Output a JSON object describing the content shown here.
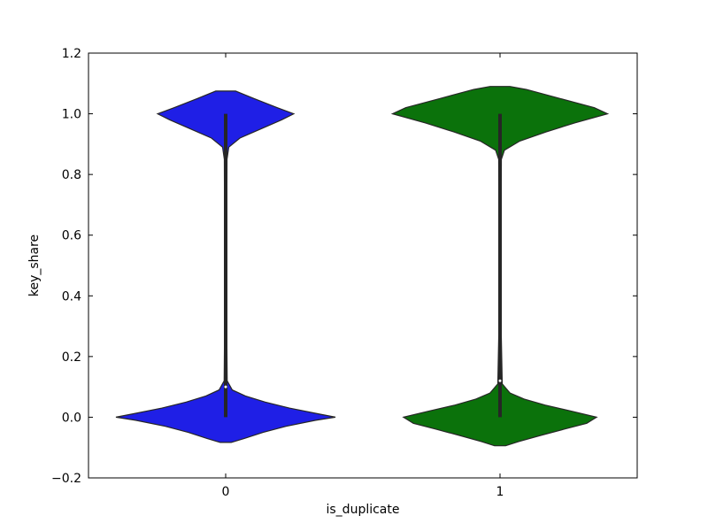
{
  "chart_data": {
    "type": "violin",
    "title": "",
    "xlabel": "is_duplicate",
    "ylabel": "key_share",
    "ylim": [
      -0.2,
      1.2
    ],
    "yticks": [
      -0.2,
      0.0,
      0.2,
      0.4,
      0.6,
      0.8,
      1.0,
      1.2
    ],
    "ytick_labels": [
      "−0.2",
      "0.0",
      "0.2",
      "0.4",
      "0.6",
      "0.8",
      "1.0",
      "1.2"
    ],
    "categories": [
      "0",
      "1"
    ],
    "grid": false,
    "series": [
      {
        "category": "0",
        "color": "#1f1fe6",
        "min": 0.0,
        "max": 1.0,
        "median": 0.1,
        "density": [
          [
            -0.083,
            0.05
          ],
          [
            -0.07,
            0.17
          ],
          [
            -0.05,
            0.34
          ],
          [
            -0.03,
            0.55
          ],
          [
            -0.01,
            0.82
          ],
          [
            0.0,
            1.0
          ],
          [
            0.01,
            0.86
          ],
          [
            0.03,
            0.58
          ],
          [
            0.05,
            0.36
          ],
          [
            0.07,
            0.18
          ],
          [
            0.09,
            0.06
          ],
          [
            0.12,
            0.014
          ],
          [
            0.3,
            0.01
          ],
          [
            0.6,
            0.01
          ],
          [
            0.85,
            0.012
          ],
          [
            0.89,
            0.028
          ],
          [
            0.92,
            0.13
          ],
          [
            0.95,
            0.32
          ],
          [
            0.98,
            0.51
          ],
          [
            1.0,
            0.62
          ],
          [
            1.02,
            0.47
          ],
          [
            1.05,
            0.26
          ],
          [
            1.075,
            0.09
          ]
        ]
      },
      {
        "category": "1",
        "color": "#0b720b",
        "min": 0.0,
        "max": 1.0,
        "median": 0.12,
        "density": [
          [
            -0.094,
            0.05
          ],
          [
            -0.08,
            0.17
          ],
          [
            -0.06,
            0.37
          ],
          [
            -0.04,
            0.58
          ],
          [
            -0.02,
            0.79
          ],
          [
            0.0,
            0.88
          ],
          [
            0.02,
            0.65
          ],
          [
            0.04,
            0.41
          ],
          [
            0.06,
            0.22
          ],
          [
            0.08,
            0.09
          ],
          [
            0.11,
            0.02
          ],
          [
            0.3,
            0.01
          ],
          [
            0.6,
            0.01
          ],
          [
            0.85,
            0.012
          ],
          [
            0.88,
            0.04
          ],
          [
            0.91,
            0.18
          ],
          [
            0.94,
            0.42
          ],
          [
            0.97,
            0.68
          ],
          [
            1.0,
            0.98
          ],
          [
            1.02,
            0.86
          ],
          [
            1.05,
            0.55
          ],
          [
            1.08,
            0.24
          ],
          [
            1.09,
            0.09
          ]
        ]
      }
    ]
  }
}
